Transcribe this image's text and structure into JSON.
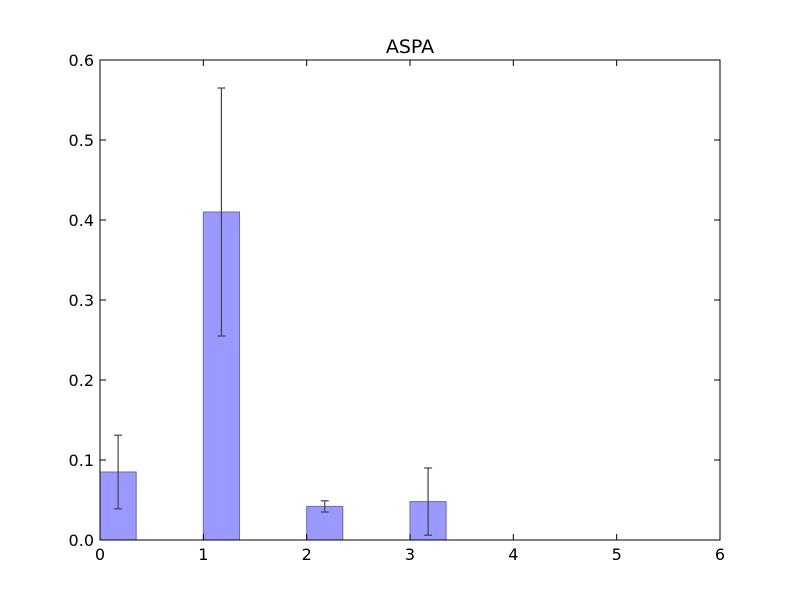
{
  "chart_data": {
    "type": "bar",
    "title": "ASPA",
    "xlabel": "",
    "ylabel": "",
    "x": [
      0,
      1,
      2,
      3
    ],
    "values": [
      0.085,
      0.41,
      0.042,
      0.048
    ],
    "errors": [
      0.046,
      0.155,
      0.007,
      0.042
    ],
    "bar_width": 0.35,
    "xlim": [
      0,
      6
    ],
    "ylim": [
      0,
      0.6
    ],
    "xticks": [
      "0",
      "1",
      "2",
      "3",
      "4",
      "5",
      "6"
    ],
    "yticks": [
      "0.0",
      "0.1",
      "0.2",
      "0.3",
      "0.4",
      "0.5",
      "0.6"
    ],
    "grid": false,
    "colors": {
      "bar_fill": "#9999ff",
      "bar_edge": "#6b6bb3",
      "error_bar": "#444444",
      "axes": "#000000"
    }
  }
}
